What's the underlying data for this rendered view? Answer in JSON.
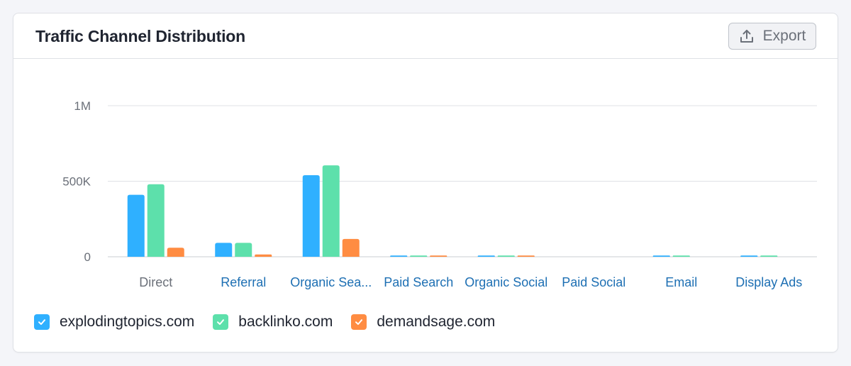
{
  "card": {
    "title": "Traffic Channel Distribution",
    "export_label": "Export",
    "export_icon": "upload-icon"
  },
  "colors": {
    "series": [
      "#2fb0ff",
      "#5de0ab",
      "#ff8c42"
    ],
    "grid": "#dfe1e6",
    "axis_text": "#6b7079",
    "link_text": "#1d6fb3",
    "active_text": "#6b7079"
  },
  "chart_data": {
    "type": "bar",
    "categories": [
      "Direct",
      "Referral",
      "Organic Sea...",
      "Paid Search",
      "Organic Social",
      "Paid Social",
      "Email",
      "Display Ads"
    ],
    "series": [
      {
        "name": "explodingtopics.com",
        "values": [
          410000,
          92000,
          540000,
          8000,
          8000,
          0,
          8000,
          8000
        ]
      },
      {
        "name": "backlinko.com",
        "values": [
          480000,
          92000,
          605000,
          8000,
          8000,
          0,
          8000,
          8000
        ]
      },
      {
        "name": "demandsage.com",
        "values": [
          60000,
          15000,
          118000,
          8000,
          8000,
          0,
          0,
          0
        ]
      }
    ],
    "y_ticks": [
      {
        "value": 0,
        "label": "0"
      },
      {
        "value": 500000,
        "label": "500K"
      },
      {
        "value": 1000000,
        "label": "1M"
      }
    ],
    "ylim": [
      0,
      1000000
    ],
    "active_category": "Direct",
    "grid": true,
    "legend_position": "bottom-left"
  }
}
